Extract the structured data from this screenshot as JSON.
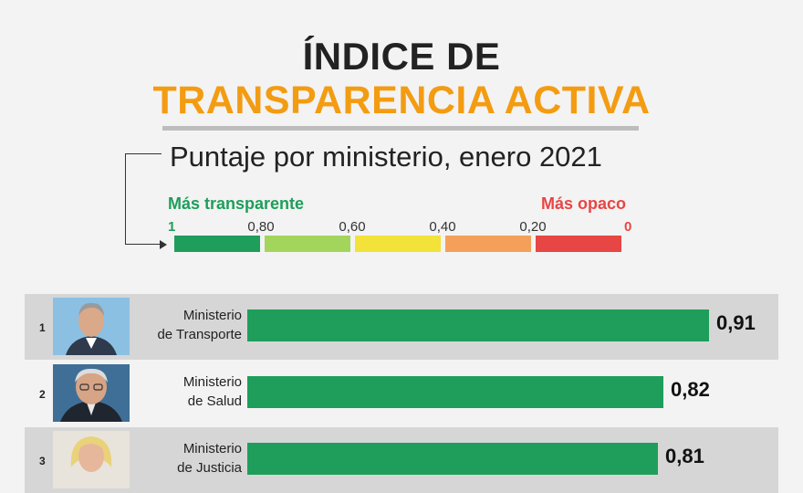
{
  "title_line1": "ÍNDICE DE",
  "title_line2": "TRANSPARENCIA ACTIVA",
  "subtitle": "Puntaje por ministerio, enero 2021",
  "legend": {
    "left_label": "Más transparente",
    "right_label": "Más opaco",
    "ticks": [
      "1",
      "0,80",
      "0,60",
      "0,40",
      "0,20",
      "0"
    ],
    "colors": [
      "#1e9e5a",
      "#a3d55c",
      "#f2e23a",
      "#f5a05a",
      "#e84545"
    ]
  },
  "colors": {
    "title_accent": "#f39c12",
    "bar": "#1e9e5a",
    "row_shade": "#d6d6d6"
  },
  "chart_data": {
    "type": "bar",
    "orientation": "horizontal",
    "title": "ÍNDICE DE TRANSPARENCIA ACTIVA",
    "subtitle": "Puntaje por ministerio, enero 2021",
    "xlim": [
      0,
      1
    ],
    "rows": [
      {
        "rank": "1",
        "line1": "Ministerio",
        "line2": "de Transporte",
        "value": 0.91,
        "value_label": "0,91"
      },
      {
        "rank": "2",
        "line1": "Ministerio",
        "line2": "de Salud",
        "value": 0.82,
        "value_label": "0,82"
      },
      {
        "rank": "3",
        "line1": "Ministerio",
        "line2": "de Justicia",
        "value": 0.81,
        "value_label": "0,81"
      }
    ]
  }
}
